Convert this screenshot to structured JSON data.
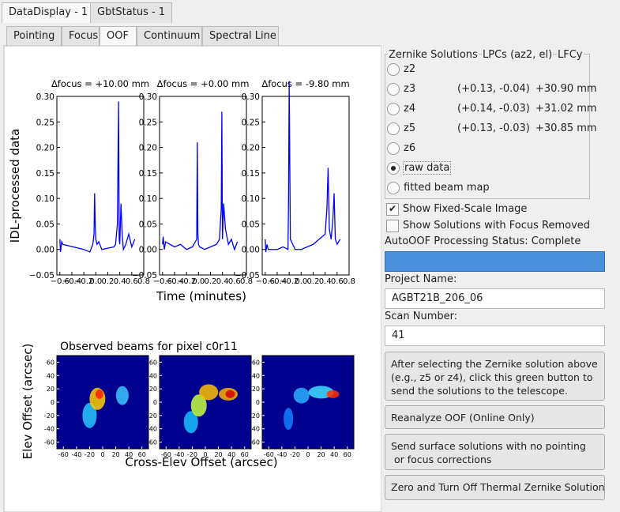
{
  "top_tabs": [
    "DataDisplay - 1",
    "GbtStatus - 1"
  ],
  "sub_tabs": [
    "Pointing",
    "Focus",
    "OOF",
    "Continuum",
    "Spectral Line"
  ],
  "active_sub_tab": 2,
  "time_plots": {
    "ylabel": "IDL-processed data",
    "xlabel": "Time (minutes)",
    "color": "#0000ff",
    "xlim": [
      -0.65,
      0.8
    ],
    "ylim": [
      -0.05,
      0.3
    ],
    "xticks": [
      {
        "value": -0.6,
        "label": "−0.6"
      },
      {
        "value": -0.4,
        "label": "−0.4"
      },
      {
        "value": -0.2,
        "label": "−0.2"
      },
      {
        "value": 0,
        "label": "0.0"
      },
      0.2,
      0.4,
      0.6,
      0.8
    ],
    "yticks": [
      {
        "value": 0.3,
        "label": "0.30"
      },
      0.25,
      {
        "value": 0.2,
        "label": "0.20"
      },
      0.15,
      {
        "value": 0.1,
        "label": "0.10"
      },
      0.05,
      {
        "value": 0,
        "label": "0.00"
      },
      {
        "value": -0.05,
        "label": "−0.05"
      }
    ],
    "panels": [
      {
        "title": "Δfocus = +10.00 mm",
        "x": [
          -0.6,
          -0.59,
          -0.57,
          -0.55,
          -0.2,
          -0.1,
          -0.05,
          -0.03,
          -0.02,
          -0.01,
          0.0,
          0.02,
          0.05,
          0.1,
          0.3,
          0.33,
          0.36,
          0.38,
          0.39,
          0.4,
          0.42,
          0.44,
          0.46,
          0.5,
          0.55,
          0.6,
          0.65
        ],
        "y": [
          0.02,
          -0.005,
          0.015,
          0.01,
          0.0,
          -0.005,
          0.01,
          0.03,
          0.11,
          0.05,
          0.02,
          0.01,
          0.015,
          0.0,
          0.005,
          0.01,
          0.05,
          0.29,
          0.02,
          0.01,
          0.09,
          0.03,
          0.0,
          0.01,
          0.03,
          0.005,
          0.02
        ]
      },
      {
        "title": "Δfocus = +0.00 mm",
        "x": [
          -0.6,
          -0.59,
          -0.57,
          -0.55,
          -0.4,
          -0.3,
          -0.2,
          -0.1,
          -0.03,
          -0.02,
          -0.01,
          0.0,
          0.02,
          0.1,
          0.2,
          0.3,
          0.35,
          0.38,
          0.39,
          0.4,
          0.42,
          0.45,
          0.5,
          0.55,
          0.6,
          0.65
        ],
        "y": [
          0.01,
          0.025,
          0.0,
          0.015,
          0.005,
          0.01,
          0.0,
          0.005,
          0.02,
          0.21,
          0.03,
          0.01,
          0.005,
          0.0,
          0.005,
          0.01,
          0.02,
          0.08,
          0.27,
          0.02,
          0.09,
          0.04,
          0.01,
          0.02,
          0.0,
          0.015
        ]
      },
      {
        "title": "Δfocus = -9.80 mm",
        "x": [
          -0.6,
          -0.59,
          -0.57,
          -0.55,
          -0.4,
          -0.3,
          -0.22,
          -0.21,
          -0.2,
          -0.18,
          -0.1,
          0.0,
          0.1,
          0.2,
          0.3,
          0.4,
          0.43,
          0.45,
          0.47,
          0.5,
          0.53,
          0.55,
          0.57,
          0.6,
          0.65
        ],
        "y": [
          0.02,
          -0.005,
          0.01,
          0.0,
          0.0,
          0.005,
          0.0,
          0.1,
          0.33,
          0.02,
          0.0,
          0.0,
          0.005,
          0.01,
          0.02,
          0.03,
          0.08,
          0.16,
          0.04,
          0.02,
          0.06,
          0.11,
          0.02,
          0.01,
          0.02
        ]
      }
    ]
  },
  "beams": {
    "title": "Observed beams for pixel c0r11",
    "xlabel": "Cross-Elev Offset (arcsec)",
    "ylabel": "Elev Offset (arcsec)",
    "xlim": [
      -70,
      70
    ],
    "ylim": [
      -70,
      70
    ],
    "xticks": [
      -60,
      -40,
      -20,
      0,
      20,
      40,
      60
    ],
    "yticks": [
      60,
      40,
      20,
      0,
      -20,
      -40,
      -60
    ]
  },
  "zernike": {
    "headers": [
      "Zernike Solutions",
      "LPCs (az2, el)",
      "LFCy"
    ],
    "selected": 5,
    "options": [
      {
        "label": "z2"
      },
      {
        "label": "z3",
        "lpcs": "(+0.13, -0.04)",
        "lfcy": "+30.90 mm"
      },
      {
        "label": "z4",
        "lpcs": "(+0.14, -0.03)",
        "lfcy": "+31.02 mm"
      },
      {
        "label": "z5",
        "lpcs": "(+0.13, -0.03)",
        "lfcy": "+30.85 mm"
      },
      {
        "label": "z6"
      },
      {
        "label": "raw data"
      },
      {
        "label": "fitted beam map"
      }
    ]
  },
  "checkboxes": [
    {
      "label": "Show Fixed-Scale Image",
      "checked": true
    },
    {
      "label": "Show Solutions with Focus Removed",
      "checked": false
    }
  ],
  "status": "AutoOOF Processing Status: Complete",
  "project": {
    "label": "Project Name:",
    "value": "AGBT21B_206_06"
  },
  "scan": {
    "label": "Scan Number:",
    "value": "41"
  },
  "buttons": [
    {
      "lines": [
        "After selecting the Zernike solution above",
        "(e.g., z5 or z4), click this green button to",
        "send the solutions to the telescope."
      ]
    },
    {
      "lines": [
        "Reanalyze OOF (Online Only)"
      ]
    },
    {
      "lines": [
        "Send surface solutions with no pointing",
        " or focus corrections"
      ]
    },
    {
      "lines": [
        "Zero and Turn Off Thermal Zernike Solution"
      ]
    }
  ]
}
